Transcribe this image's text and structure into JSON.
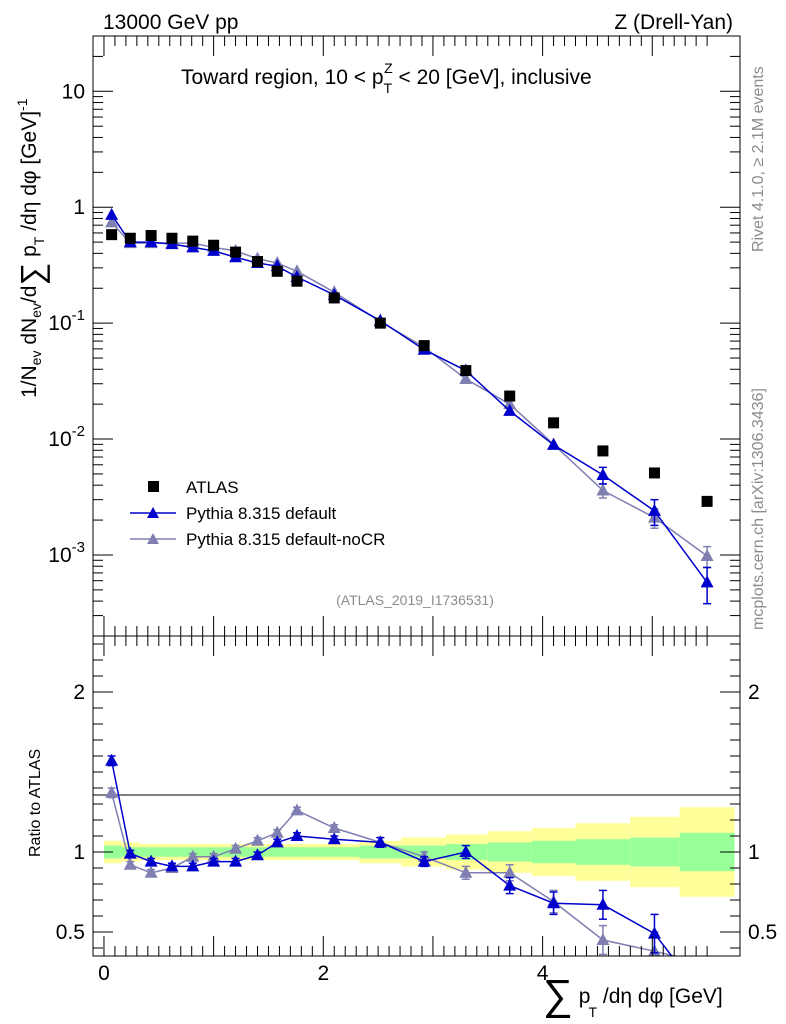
{
  "header": {
    "left": "13000 GeV pp",
    "right": "Z (Drell-Yan)"
  },
  "side_labels": {
    "rivet": "Rivet 4.1.0, ≥ 2.1M events",
    "mcplots": "mcplots.cern.ch [arXiv:1306.3436]"
  },
  "colors": {
    "atlas": "#000000",
    "default": "#0000cc",
    "nocr": "#7f7fb2",
    "band_inner": "#99ff99",
    "band_outer": "#ffff99"
  },
  "chart_data": [
    {
      "type": "scatter",
      "title": "Toward region, 10 < p_T^Z < 20 [GeV], inclusive",
      "title_parts": {
        "pre": "Toward region, 10 < p",
        "sup": "Z",
        "sub": "T",
        "post": " < 20 [GeV], inclusive"
      },
      "watermark": "(ATLAS_2019_I1736531)",
      "ylabel": "1/N_ev dN_ev/d∑ p_T /dη dφ [GeV]^-1",
      "yscale": "log",
      "ylim": [
        0.0002,
        30
      ],
      "xlim": [
        -0.1,
        5.8
      ],
      "ytick_labels": [
        "10",
        "1",
        "10^-1",
        "10^-2",
        "10^-3"
      ],
      "legend": {
        "position": "bottom-left",
        "entries": [
          "ATLAS",
          "Pythia 8.315 default",
          "Pythia 8.315 default-noCR"
        ]
      },
      "series": [
        {
          "name": "ATLAS",
          "marker": "square",
          "x": [
            0.07,
            0.24,
            0.43,
            0.62,
            0.81,
            1.0,
            1.2,
            1.4,
            1.58,
            1.76,
            2.1,
            2.52,
            2.92,
            3.3,
            3.7,
            4.1,
            4.55,
            5.02,
            5.5
          ],
          "y": [
            0.58,
            0.54,
            0.57,
            0.54,
            0.51,
            0.47,
            0.41,
            0.34,
            0.28,
            0.23,
            0.165,
            0.1,
            0.064,
            0.039,
            0.0235,
            0.0138,
            0.0079,
            0.0051,
            0.0029
          ]
        },
        {
          "name": "Pythia 8.315 default",
          "marker": "triangle",
          "x": [
            0.07,
            0.24,
            0.43,
            0.62,
            0.81,
            1.0,
            1.2,
            1.4,
            1.58,
            1.76,
            2.1,
            2.52,
            2.92,
            3.3,
            3.7,
            4.1,
            4.55,
            5.02,
            5.5
          ],
          "y": [
            0.86,
            0.5,
            0.5,
            0.48,
            0.45,
            0.42,
            0.37,
            0.33,
            0.31,
            0.25,
            0.175,
            0.105,
            0.059,
            0.039,
            0.0175,
            0.0089,
            0.0049,
            0.0024,
            0.00058
          ],
          "err": [
            0.03,
            0.01,
            0.01,
            0.01,
            0.01,
            0.01,
            0.01,
            0.01,
            0.01,
            0.01,
            0.005,
            0.003,
            0.002,
            0.0015,
            0.0008,
            0.0006,
            0.0008,
            0.0006,
            0.0002
          ]
        },
        {
          "name": "Pythia 8.315 default-noCR",
          "marker": "triangle",
          "x": [
            0.07,
            0.24,
            0.43,
            0.62,
            0.81,
            1.0,
            1.2,
            1.4,
            1.58,
            1.76,
            2.1,
            2.52,
            2.92,
            3.3,
            3.7,
            4.1,
            4.55,
            5.02,
            5.5
          ],
          "y": [
            0.74,
            0.49,
            0.49,
            0.49,
            0.49,
            0.45,
            0.42,
            0.36,
            0.33,
            0.28,
            0.185,
            0.103,
            0.062,
            0.033,
            0.02,
            0.009,
            0.0036,
            0.0021,
            0.00098
          ],
          "err": [
            0.03,
            0.01,
            0.01,
            0.01,
            0.01,
            0.01,
            0.01,
            0.01,
            0.01,
            0.01,
            0.005,
            0.003,
            0.002,
            0.0015,
            0.0009,
            0.0006,
            0.0005,
            0.0004,
            0.0002
          ]
        }
      ]
    },
    {
      "type": "line",
      "ylabel": "Ratio to ATLAS",
      "xlabel": "∑ p_T /dη dφ [GeV]",
      "xlim": [
        -0.1,
        5.8
      ],
      "ylim": [
        0.35,
        2.35
      ],
      "xtick_labels": [
        "0",
        "2",
        "4"
      ],
      "ytick_labels": [
        "2",
        "1",
        "0.5"
      ],
      "bands": {
        "edges": [
          0.0,
          0.16,
          0.33,
          0.52,
          0.71,
          0.9,
          1.1,
          1.3,
          1.49,
          1.67,
          1.86,
          2.33,
          2.71,
          3.12,
          3.5,
          3.9,
          4.3,
          4.8,
          5.25,
          5.75
        ],
        "inner": [
          0.04,
          0.03,
          0.03,
          0.03,
          0.03,
          0.03,
          0.03,
          0.03,
          0.03,
          0.03,
          0.03,
          0.04,
          0.04,
          0.05,
          0.06,
          0.07,
          0.08,
          0.09,
          0.12
        ],
        "outer": [
          0.07,
          0.06,
          0.05,
          0.05,
          0.05,
          0.05,
          0.05,
          0.05,
          0.05,
          0.05,
          0.05,
          0.07,
          0.09,
          0.11,
          0.13,
          0.15,
          0.18,
          0.22,
          0.28
        ]
      },
      "series": [
        {
          "name": "Pythia 8.315 default",
          "x": [
            0.07,
            0.24,
            0.43,
            0.62,
            0.81,
            1.0,
            1.2,
            1.4,
            1.58,
            1.76,
            2.1,
            2.52,
            2.92,
            3.3,
            3.7,
            4.1,
            4.55,
            5.02,
            5.2
          ],
          "y": [
            1.57,
            0.99,
            0.94,
            0.91,
            0.91,
            0.94,
            0.94,
            0.98,
            1.06,
            1.1,
            1.08,
            1.06,
            0.94,
            1.0,
            0.79,
            0.68,
            0.67,
            0.49,
            0.33
          ],
          "err": [
            0.03,
            0.02,
            0.02,
            0.02,
            0.02,
            0.02,
            0.02,
            0.02,
            0.02,
            0.02,
            0.02,
            0.03,
            0.03,
            0.04,
            0.05,
            0.07,
            0.09,
            0.12,
            0.0
          ]
        },
        {
          "name": "Pythia 8.315 default-noCR",
          "x": [
            0.07,
            0.24,
            0.43,
            0.62,
            0.81,
            1.0,
            1.2,
            1.4,
            1.58,
            1.76,
            2.1,
            2.52,
            2.92,
            3.3,
            3.7,
            4.1,
            4.55,
            5.02,
            5.2
          ],
          "y": [
            1.37,
            0.92,
            0.87,
            0.9,
            0.97,
            0.97,
            1.02,
            1.07,
            1.12,
            1.26,
            1.15,
            1.06,
            0.97,
            0.87,
            0.87,
            0.69,
            0.45,
            0.38,
            0.35
          ],
          "err": [
            0.03,
            0.02,
            0.02,
            0.02,
            0.02,
            0.02,
            0.02,
            0.02,
            0.02,
            0.02,
            0.02,
            0.03,
            0.03,
            0.04,
            0.05,
            0.07,
            0.09,
            0.12,
            0.0
          ]
        }
      ]
    }
  ]
}
